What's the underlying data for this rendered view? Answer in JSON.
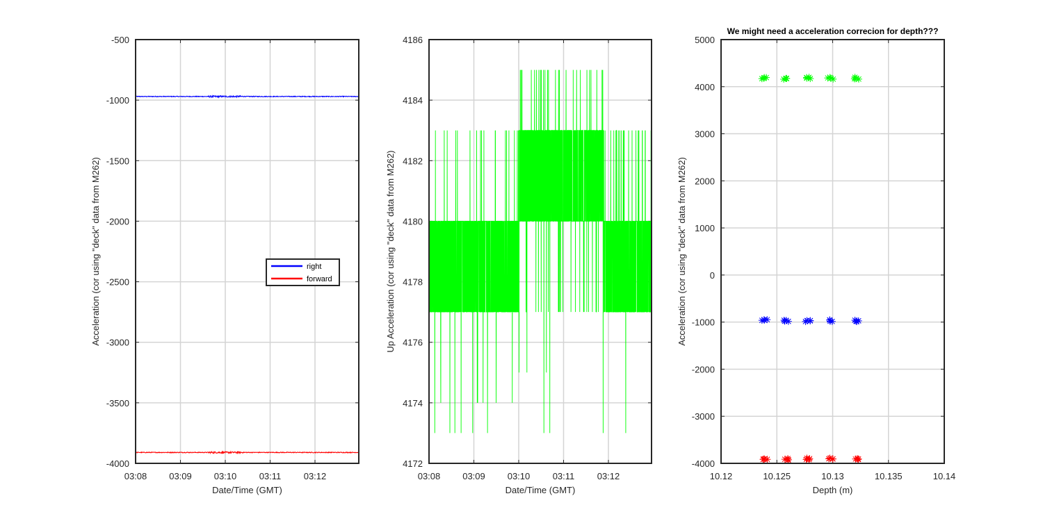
{
  "chart_data": [
    {
      "type": "line",
      "title": "",
      "xlabel": "Date/Time (GMT)",
      "ylabel": "Acceleration (cor using \"deck\" data from M262)",
      "xticks": [
        "03:08",
        "03:09",
        "03:10",
        "03:11",
        "03:12"
      ],
      "xlim_minutes": [
        0,
        4.9
      ],
      "ylim": [
        -4000,
        -500
      ],
      "yticks": [
        -4000,
        -3500,
        -3000,
        -2500,
        -2000,
        -1500,
        -1000,
        -500
      ],
      "grid": true,
      "legend": {
        "position": "center-right",
        "entries": [
          "right",
          "forward"
        ]
      },
      "series": [
        {
          "name": "right",
          "color": "#0000ff",
          "level": -970,
          "noise": 6
        },
        {
          "name": "forward",
          "color": "#ff0000",
          "level": -3910,
          "noise": 6
        }
      ]
    },
    {
      "type": "line",
      "title": "",
      "xlabel": "Date/Time (GMT)",
      "ylabel": "Up Acceleration (cor using \"deck\" data from M262)",
      "xticks": [
        "03:08",
        "03:09",
        "03:10",
        "03:11",
        "03:12"
      ],
      "xlim_minutes": [
        0,
        4.9
      ],
      "ylim": [
        4172,
        4186
      ],
      "yticks": [
        4172,
        4174,
        4176,
        4178,
        4180,
        4182,
        4184,
        4186
      ],
      "grid": true,
      "series": [
        {
          "color": "#00ff00",
          "band1": [
            4177,
            4180
          ],
          "band2": [
            4180,
            4183
          ],
          "band2_range_minutes": [
            2.0,
            3.9
          ],
          "spikes_high": [
            4183,
            4185
          ],
          "spikes_low": [
            4173,
            4174,
            4175
          ]
        }
      ]
    },
    {
      "type": "scatter",
      "title": "We might need a acceleration correcion for depth???",
      "xlabel": "Depth (m)",
      "ylabel": "Acceleration (cor using \"deck\" data from M262)",
      "xlim": [
        10.12,
        10.14
      ],
      "xticks": [
        10.12,
        10.125,
        10.13,
        10.135,
        10.14
      ],
      "xtick_labels": [
        "10.12",
        "10.125",
        "10.13",
        "10.135",
        "10.14"
      ],
      "ylim": [
        -4000,
        5000
      ],
      "yticks": [
        -4000,
        -3000,
        -2000,
        -1000,
        0,
        1000,
        2000,
        3000,
        4000,
        5000
      ],
      "grid": true,
      "marker": "*",
      "depths": [
        10.1239,
        10.1258,
        10.1278,
        10.1298,
        10.1321
      ],
      "series": [
        {
          "color": "#00ff00",
          "level": 4178
        },
        {
          "color": "#0000ff",
          "level": -970
        },
        {
          "color": "#ff0000",
          "level": -3910
        }
      ]
    }
  ]
}
